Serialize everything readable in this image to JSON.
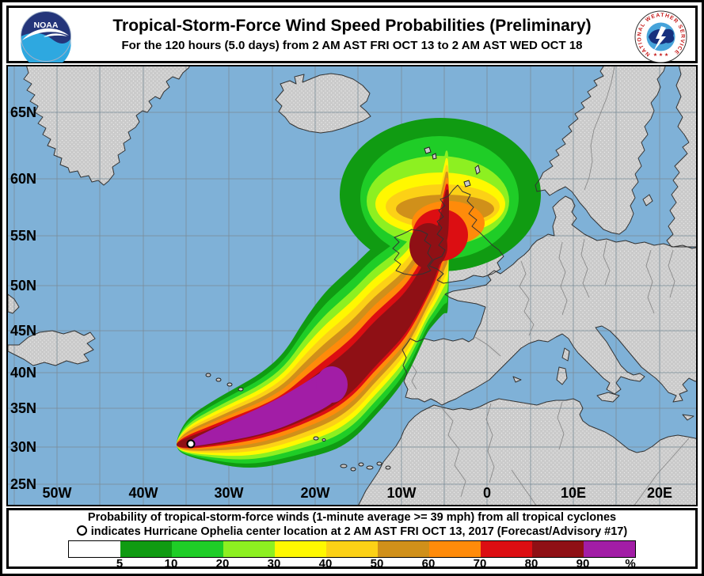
{
  "header": {
    "title": "Tropical-Storm-Force Wind Speed Probabilities (Preliminary)",
    "subtitle": "For the 120 hours (5.0 days) from 2 AM AST FRI OCT 13 to 2 AM AST WED OCT 18",
    "noaa_logo_text": "NOAA",
    "nws_logo_text": "NATIONAL WEATHER SERVICE"
  },
  "map": {
    "lat_labels": [
      "65N",
      "60N",
      "55N",
      "50N",
      "45N",
      "40N",
      "35N",
      "30N",
      "25N"
    ],
    "lon_labels": [
      "50W",
      "40W",
      "30W",
      "20W",
      "10W",
      "0",
      "10E",
      "20E"
    ],
    "marker_symbol": "hurricane-center-circle"
  },
  "footer": {
    "line1": "Probability of tropical-storm-force winds (1-minute average >= 39 mph) from all tropical cyclones",
    "line2_prefix": "indicates Hurricane Ophelia center location at 2 AM AST FRI OCT 13, 2017 (Forecast/Advisory #17)"
  },
  "legend": {
    "labels": [
      "5",
      "10",
      "20",
      "30",
      "40",
      "50",
      "60",
      "70",
      "80",
      "90",
      "%"
    ],
    "colors": [
      "#FFFFFF",
      "#109B12",
      "#1FCD27",
      "#8DF021",
      "#FFF800",
      "#FCD116",
      "#D0901A",
      "#FF8B0A",
      "#DC0E12",
      "#8F1015",
      "#A21DA6"
    ]
  },
  "colors": {
    "ocean": "#7FB1D7",
    "land": "#CACACA",
    "coastline": "#333333",
    "grid": "#7A8C99",
    "border_lines": "#8A8A8A"
  },
  "chart_data": {
    "type": "heatmap",
    "title": "Tropical-Storm-Force Wind Speed Probabilities (Preliminary)",
    "period": "120 hours (5.0 days) from 2 AM AST FRI OCT 13 to 2 AM AST WED OCT 18",
    "legend_thresholds_percent": [
      5,
      10,
      20,
      30,
      40,
      50,
      60,
      70,
      80,
      90
    ],
    "storm": "Hurricane Ophelia",
    "advisory": "Forecast/Advisory #17",
    "center_location_time": "2 AM AST FRI OCT 13, 2017",
    "lat_gridlines": [
      "65N",
      "60N",
      "55N",
      "50N",
      "45N",
      "40N",
      "35N",
      "30N",
      "25N"
    ],
    "lon_gridlines": [
      "50W",
      "40W",
      "30W",
      "20W",
      "10W",
      "0",
      "10E",
      "20E"
    ]
  }
}
